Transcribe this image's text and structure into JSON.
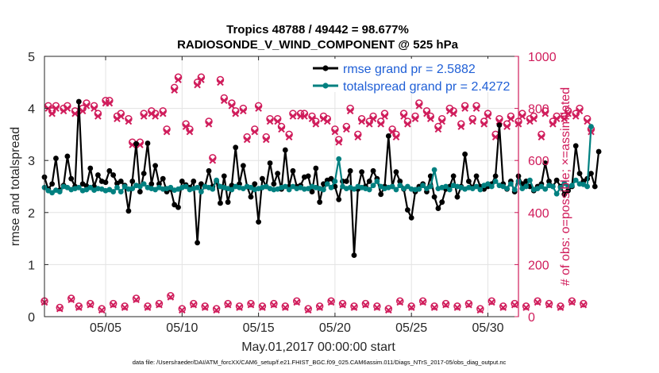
{
  "chart_data": {
    "type": "line",
    "title_line1": "Tropics 48788 / 49442 = 98.677%",
    "title_line2": "RADIOSONDE_V_WIND_COMPONENT @ 525 hPa",
    "xlabel": "May.01,2017 00:00:00 start",
    "ylabel_left": "rmse and totalspread",
    "ylabel_right": "# of obs: o=possible; ×=assimilated",
    "footer": "data file: /Users/raeder/DAI/ATM_forcXX/CAM6_setup/f.e21.FHIST_BGC.f09_025.CAM6assim.011/Diags_NTrS_2017-05/obs_diag_output.nc",
    "xlim": [
      1.0,
      32.0
    ],
    "ylim_left": [
      0,
      5
    ],
    "ylim_right": [
      0,
      1000
    ],
    "x_ticks": [
      5,
      10,
      15,
      20,
      25,
      30
    ],
    "x_tick_labels": [
      "05/05",
      "05/10",
      "05/15",
      "05/20",
      "05/25",
      "05/30"
    ],
    "y_ticks_left": [
      0,
      1,
      2,
      3,
      4,
      5
    ],
    "y_ticks_left_labels": [
      "0",
      "1",
      "2",
      "3",
      "4",
      "5"
    ],
    "y_ticks_right": [
      0,
      200,
      400,
      600,
      800,
      1000
    ],
    "y_ticks_right_labels": [
      "0",
      "200",
      "400",
      "600",
      "800",
      "1000"
    ],
    "grid": true,
    "legend_position": "top-right",
    "legend": [
      {
        "label": "rmse grand pr = 2.5882",
        "color": "#000000"
      },
      {
        "label": "totalspread grand pr = 2.4272",
        "color": "#008080"
      }
    ],
    "colors": {
      "rmse": "#000000",
      "totalspread": "#008080",
      "obs": "#d01c5b"
    },
    "x_start": 1.0,
    "x_step": 0.25,
    "series": [
      {
        "name": "rmse",
        "values": [
          2.68,
          2.45,
          2.55,
          3.04,
          2.43,
          2.52,
          3.08,
          2.65,
          2.5,
          4.13,
          2.55,
          2.51,
          2.85,
          2.5,
          2.72,
          2.6,
          2.58,
          2.8,
          2.72,
          2.56,
          2.6,
          2.52,
          2.03,
          2.6,
          3.32,
          2.4,
          2.75,
          3.33,
          2.55,
          2.9,
          2.55,
          2.65,
          2.4,
          2.45,
          2.15,
          2.1,
          2.6,
          2.53,
          2.48,
          2.6,
          1.42,
          2.55,
          2.5,
          2.8,
          2.5,
          2.6,
          2.18,
          2.7,
          2.2,
          2.52,
          3.25,
          2.55,
          2.9,
          2.5,
          2.3,
          2.55,
          1.82,
          2.65,
          2.5,
          2.95,
          2.55,
          2.75,
          2.45,
          3.2,
          2.5,
          2.8,
          2.5,
          2.52,
          2.68,
          2.7,
          2.4,
          2.85,
          2.2,
          2.55,
          2.62,
          2.65,
          2.5,
          2.25,
          2.6,
          2.6,
          2.8,
          1.18,
          2.45,
          2.78,
          2.5,
          2.6,
          2.8,
          2.65,
          2.35,
          2.5,
          3.47,
          2.5,
          2.78,
          2.6,
          2.45,
          2.05,
          1.9,
          2.4,
          2.5,
          2.55,
          2.4,
          2.7,
          2.3,
          2.08,
          2.2,
          2.45,
          2.5,
          2.7,
          2.3,
          2.5,
          3.12,
          2.6,
          2.48,
          2.7,
          2.5,
          2.45,
          2.5,
          2.55,
          2.7,
          3.68,
          2.55,
          2.45,
          2.6,
          2.4,
          2.7,
          2.55,
          2.6,
          2.5,
          2.42,
          2.5,
          2.55,
          2.95,
          2.6,
          2.5,
          2.62,
          2.5,
          2.35,
          2.42,
          2.5,
          3.28,
          2.75,
          2.6,
          2.65,
          2.75,
          2.5,
          3.17
        ]
      },
      {
        "name": "totalspread",
        "values": [
          2.48,
          2.42,
          2.38,
          2.43,
          2.4,
          2.5,
          2.48,
          2.44,
          2.46,
          2.48,
          2.42,
          2.44,
          2.48,
          2.43,
          2.46,
          2.45,
          2.42,
          2.44,
          2.4,
          2.48,
          2.4,
          2.5,
          2.45,
          2.46,
          2.52,
          2.5,
          2.55,
          2.48,
          2.46,
          2.44,
          2.48,
          2.45,
          2.46,
          2.48,
          2.43,
          2.45,
          2.48,
          2.5,
          2.44,
          2.46,
          2.48,
          2.4,
          2.5,
          2.48,
          2.45,
          2.62,
          2.5,
          2.48,
          2.46,
          2.44,
          2.5,
          2.48,
          2.46,
          2.5,
          2.48,
          2.44,
          2.46,
          2.48,
          2.5,
          2.46,
          2.44,
          2.45,
          2.48,
          2.5,
          2.44,
          2.5,
          2.46,
          2.48,
          2.45,
          2.46,
          2.5,
          2.48,
          2.46,
          2.44,
          2.55,
          2.48,
          2.6,
          3.03,
          2.5,
          2.46,
          2.48,
          2.45,
          2.5,
          2.48,
          2.46,
          2.44,
          2.52,
          2.6,
          2.5,
          2.46,
          2.48,
          2.5,
          2.44,
          2.52,
          2.46,
          2.5,
          2.45,
          2.44,
          2.45,
          2.52,
          2.46,
          2.5,
          2.82,
          2.46,
          2.48,
          2.5,
          2.44,
          2.52,
          2.5,
          2.48,
          2.45,
          2.48,
          2.46,
          2.5,
          2.44,
          2.52,
          2.55,
          2.5,
          2.6,
          2.52,
          2.5,
          2.46,
          2.55,
          2.44,
          2.6,
          2.46,
          2.5,
          2.62,
          2.44,
          2.46,
          2.5,
          2.45,
          2.52,
          2.5,
          2.36,
          2.48,
          2.56,
          2.5,
          2.52,
          2.62,
          2.55,
          2.54,
          2.5,
          3.65
        ]
      },
      {
        "name": "obs_possible",
        "values": [
          60,
          810,
          790,
          810,
          35,
          800,
          810,
          70,
          790,
          40,
          800,
          820,
          50,
          810,
          780,
          30,
          830,
          830,
          50,
          770,
          780,
          40,
          760,
          670,
          70,
          670,
          780,
          40,
          790,
          780,
          50,
          790,
          720,
          80,
          880,
          920,
          30,
          740,
          720,
          50,
          900,
          920,
          40,
          750,
          610,
          30,
          910,
          840,
          50,
          820,
          790,
          40,
          800,
          690,
          50,
          720,
          810,
          40,
          690,
          760,
          50,
          760,
          730,
          40,
          700,
          780,
          60,
          780,
          780,
          30,
          770,
          750,
          40,
          770,
          760,
          60,
          720,
          680,
          50,
          730,
          800,
          40,
          700,
          760,
          50,
          750,
          770,
          40,
          750,
          780,
          30,
          720,
          700,
          60,
          780,
          750,
          40,
          770,
          820,
          60,
          790,
          770,
          40,
          730,
          760,
          50,
          800,
          790,
          40,
          740,
          810,
          50,
          760,
          810,
          30,
          750,
          780,
          60,
          700,
          760,
          40,
          740,
          770,
          50,
          750,
          780,
          40,
          760,
          770,
          60,
          700,
          790,
          50,
          750,
          770,
          40,
          770,
          790,
          60,
          780,
          800,
          50,
          760,
          720
        ]
      },
      {
        "name": "obs_assimilated",
        "values": [
          55,
          800,
          780,
          800,
          30,
          790,
          800,
          65,
          780,
          35,
          790,
          810,
          45,
          800,
          770,
          25,
          820,
          820,
          45,
          760,
          770,
          35,
          750,
          660,
          65,
          660,
          770,
          35,
          780,
          770,
          45,
          780,
          710,
          75,
          870,
          910,
          25,
          730,
          710,
          45,
          890,
          910,
          35,
          740,
          600,
          25,
          900,
          830,
          45,
          810,
          780,
          35,
          790,
          680,
          45,
          710,
          800,
          35,
          680,
          750,
          45,
          750,
          720,
          35,
          690,
          770,
          55,
          770,
          770,
          25,
          760,
          740,
          35,
          760,
          750,
          55,
          710,
          670,
          45,
          720,
          790,
          35,
          690,
          750,
          45,
          740,
          760,
          35,
          740,
          770,
          25,
          710,
          690,
          55,
          770,
          740,
          35,
          760,
          810,
          55,
          780,
          760,
          35,
          720,
          750,
          45,
          790,
          780,
          35,
          730,
          800,
          45,
          750,
          800,
          25,
          740,
          770,
          55,
          690,
          750,
          35,
          730,
          760,
          45,
          740,
          770,
          35,
          750,
          760,
          55,
          690,
          780,
          45,
          740,
          760,
          35,
          760,
          780,
          55,
          770,
          790,
          45,
          750,
          710
        ]
      }
    ]
  }
}
